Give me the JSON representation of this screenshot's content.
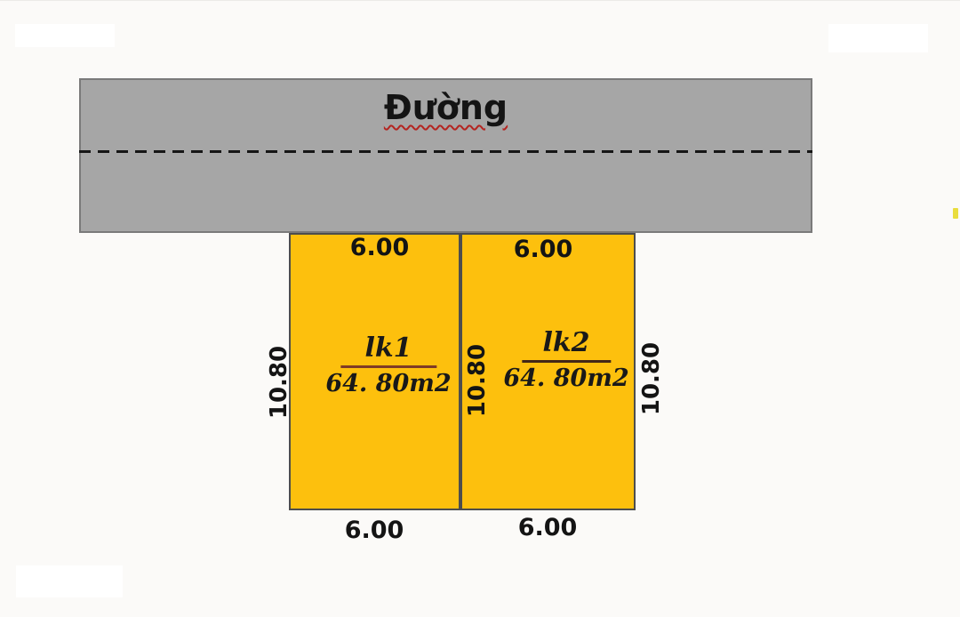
{
  "diagram": {
    "background_color": "#fbfaf8",
    "road": {
      "label": "Đường",
      "fill": "#a6a6a6",
      "border_color": "#7a7a7a",
      "centerline_style": "dashed-black",
      "spellcheck_underline_color": "#b42420"
    },
    "plots": [
      {
        "name": "lk1",
        "area_label": "64. 80m2",
        "top_width_label": "6.00",
        "bottom_width_label": "6.00",
        "left_depth_label": "10.80",
        "fill": "#fdc00d",
        "border_color": "#4d4d4d",
        "fraction_line_color": "#7e3a26"
      },
      {
        "name": "lk2",
        "area_label": "64. 80m2",
        "top_width_label": "6.00",
        "bottom_width_label": "6.00",
        "left_depth_label": "10.80",
        "right_depth_label": "10.80",
        "fill": "#fdc00d",
        "border_color": "#4d4d4d",
        "fraction_line_color": "#432818"
      }
    ]
  }
}
